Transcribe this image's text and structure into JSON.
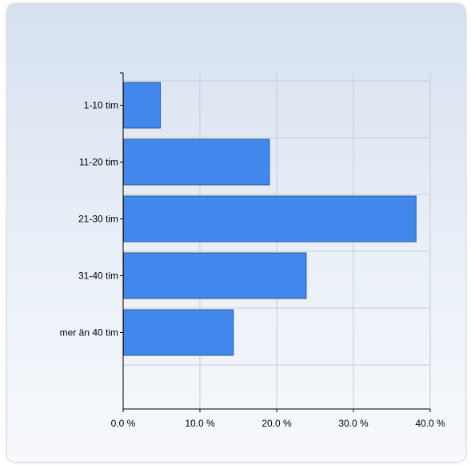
{
  "chart_data": {
    "type": "bar",
    "orientation": "horizontal",
    "categories": [
      "1-10 tim",
      "11-20 tim",
      "21-30 tim",
      "31-40 tim",
      "mer än 40 tim"
    ],
    "values": [
      4.8,
      19.0,
      38.1,
      23.8,
      14.3
    ],
    "x_ticks": [
      {
        "value": 0,
        "label": "0.0 %"
      },
      {
        "value": 10,
        "label": "10.0 %"
      },
      {
        "value": 20,
        "label": "20.0 %"
      },
      {
        "value": 30,
        "label": "30.0 %"
      },
      {
        "value": 40,
        "label": "40.0 %"
      }
    ],
    "xlim": [
      0,
      40
    ],
    "grid": true,
    "title": "",
    "xlabel": "",
    "ylabel": "",
    "bar_color": "#4287ec",
    "bar_border_color": "#3a5a8a"
  }
}
